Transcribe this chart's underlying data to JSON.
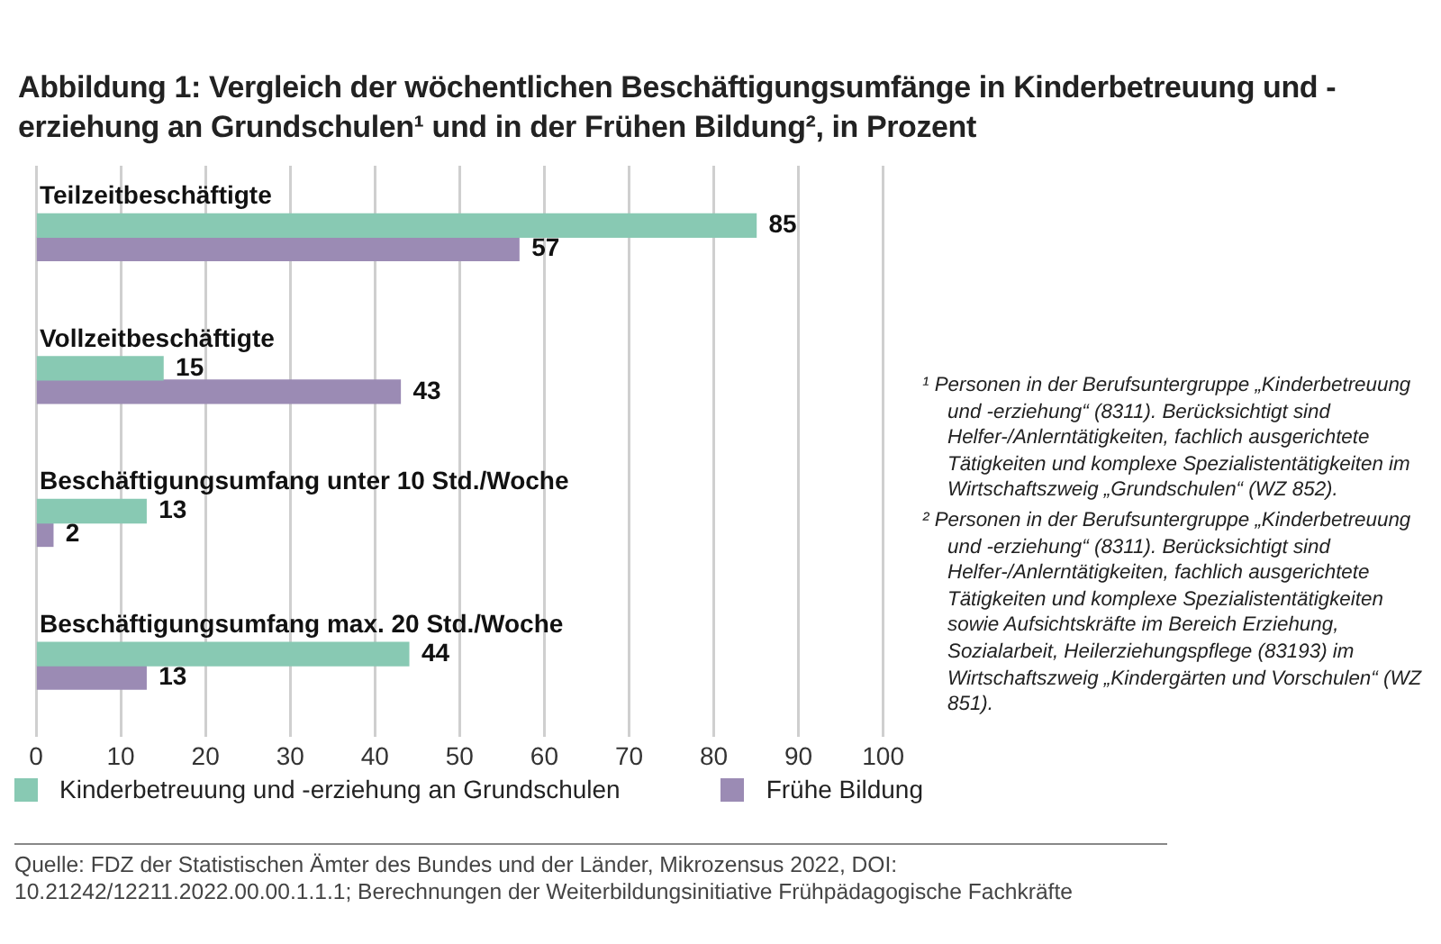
{
  "chart_data": {
    "type": "bar",
    "orientation": "horizontal",
    "title": "Abbildung 1: Vergleich der wöchentlichen Beschäftigungsumfänge in Kinderbetreuung und -erziehung an Grundschulen¹ und in der Frühen Bildung², in Prozent",
    "categories": [
      "Teilzeitbeschäftigte",
      "Vollzeitbeschäftigte",
      "Beschäftigungsumfang unter 10 Std./Woche",
      "Beschäftigungsumfang max. 20 Std./Woche"
    ],
    "series": [
      {
        "name": "Kinderbetreuung und -erziehung an Grundschulen",
        "color": "#88c9b3",
        "values": [
          85,
          15,
          13,
          44
        ]
      },
      {
        "name": "Frühe Bildung",
        "color": "#9b8bb4",
        "values": [
          57,
          43,
          2,
          13
        ]
      }
    ],
    "xlim": [
      0,
      100
    ],
    "xticks": [
      0,
      10,
      20,
      30,
      40,
      50,
      60,
      70,
      80,
      90,
      100
    ],
    "grid": "x",
    "legend": "bottom",
    "data_labels": true,
    "annotations": [
      "¹ Personen in der Berufsuntergruppe „Kinderbetreuung und -erziehung“ (8311). Berücksichtigt sind Helfer-/Anlerntätigkeiten, fachlich ausgerichtete Tätigkeiten und komplexe Spezialistentätigkeiten im Wirtschaftszweig „Grundschulen“  (WZ 852).",
      "² Personen in der Berufsuntergruppe „Kinderbetreuung und -erziehung“ (8311). Berücksichtigt sind Helfer-/Anlerntätigkeiten, fachlich ausgerichtete Tätigkeiten und komplexe Spezialistentätigkeiten sowie Aufsichtskräfte im Bereich Erziehung, Sozialarbeit, Heilerziehungspflege (83193) im Wirtschaftszweig „Kindergärten und Vorschulen“  (WZ 851).",
      "Quelle: FDZ der Statistischen Ämter des Bundes und der Länder, Mikrozensus 2022, DOI: 10.21242/12211.2022.00.00.1.1.1; Berechnungen der Weiterbildungsinitiative Frühpädagogische Fachkräfte"
    ]
  }
}
